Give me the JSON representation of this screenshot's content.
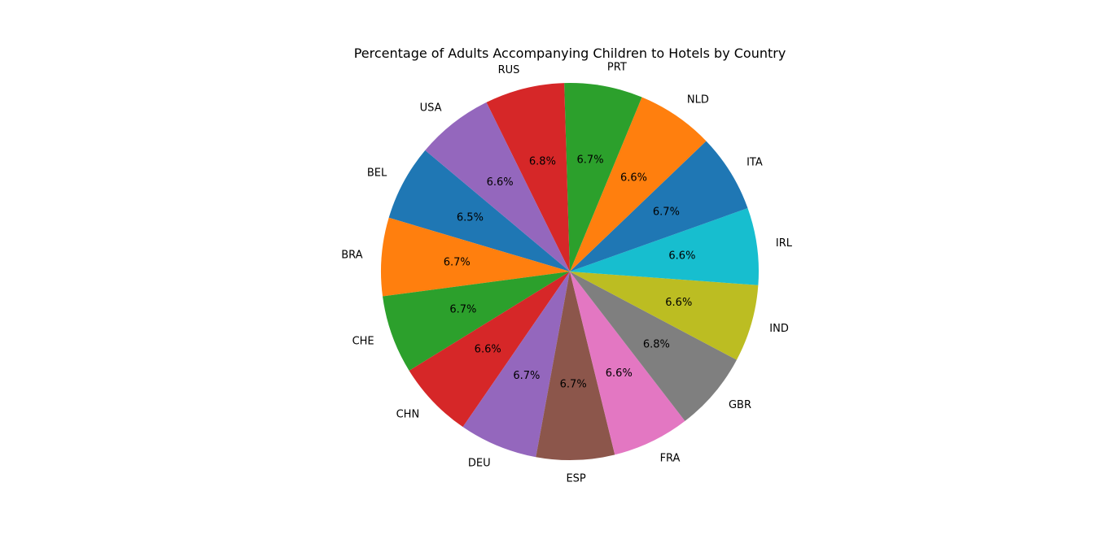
{
  "chart_data": {
    "type": "pie",
    "title": "Percentage of Adults Accompanying Children to Hotels by Country",
    "categories": [
      "BEL",
      "BRA",
      "CHE",
      "CHN",
      "DEU",
      "ESP",
      "FRA",
      "GBR",
      "IND",
      "IRL",
      "ITA",
      "NLD",
      "PRT",
      "RUS",
      "USA"
    ],
    "values": [
      6.5,
      6.7,
      6.7,
      6.6,
      6.7,
      6.7,
      6.6,
      6.8,
      6.6,
      6.6,
      6.7,
      6.6,
      6.7,
      6.8,
      6.6
    ],
    "value_labels": [
      "6.5%",
      "6.7%",
      "6.7%",
      "6.6%",
      "6.7%",
      "6.7%",
      "6.6%",
      "6.8%",
      "6.6%",
      "6.6%",
      "6.7%",
      "6.6%",
      "6.7%",
      "6.8%",
      "6.6%"
    ],
    "colors": [
      "#1f77b4",
      "#ff7f0e",
      "#2ca02c",
      "#d62728",
      "#9467bd",
      "#8c564b",
      "#e377c2",
      "#7f7f7f",
      "#bcbd22",
      "#17becf",
      "#1f77b4",
      "#ff7f0e",
      "#2ca02c",
      "#d62728",
      "#9467bd"
    ],
    "start_angle_deg": 140,
    "direction": "counterclockwise",
    "legend": "none"
  }
}
